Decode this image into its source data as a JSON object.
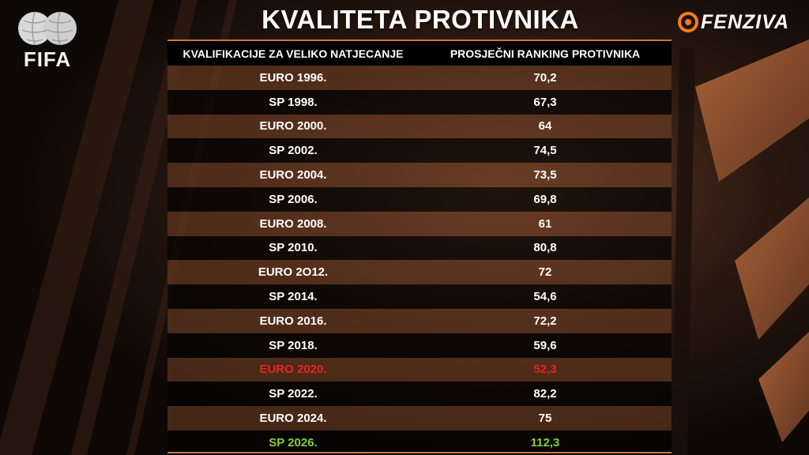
{
  "title": "KVALITETA PROTIVNIKA",
  "logos": {
    "left": "FIFA",
    "right_icon": "football-o-icon",
    "right": "FENZIVA"
  },
  "table": {
    "headers": [
      "KVALIFIKACIJE ZA VELIKO NATJECANJE",
      "PROSJEČNI RANKING PROTIVNIKA"
    ],
    "rows": [
      {
        "competition": "EURO 1996.",
        "ranking": "70,2"
      },
      {
        "competition": "SP 1998.",
        "ranking": "67,3"
      },
      {
        "competition": "EURO 2000.",
        "ranking": "64"
      },
      {
        "competition": "SP 2002.",
        "ranking": "74,5"
      },
      {
        "competition": "EURO 2004.",
        "ranking": "73,5"
      },
      {
        "competition": "SP 2006.",
        "ranking": "69,8"
      },
      {
        "competition": "EURO 2008.",
        "ranking": "61"
      },
      {
        "competition": "SP 2010.",
        "ranking": "80,8"
      },
      {
        "competition": "EURO 2O12.",
        "ranking": "72"
      },
      {
        "competition": "SP 2014.",
        "ranking": "54,6"
      },
      {
        "competition": "EURO 2016.",
        "ranking": "72,2"
      },
      {
        "competition": "SP 2018.",
        "ranking": "59,6"
      },
      {
        "competition": "EURO 2020.",
        "ranking": "52,3",
        "highlight": "#e8231f"
      },
      {
        "competition": "SP 2022.",
        "ranking": "82,2"
      },
      {
        "competition": "EURO 2024.",
        "ranking": "75"
      },
      {
        "competition": "SP 2026.",
        "ranking": "112,3",
        "highlight": "#86cf3a"
      }
    ]
  },
  "colors": {
    "accent": "#c77a3e",
    "background": "#120b08",
    "row_brown": "#693c22",
    "worst_red": "#e8231f",
    "best_green": "#86cf3a"
  }
}
